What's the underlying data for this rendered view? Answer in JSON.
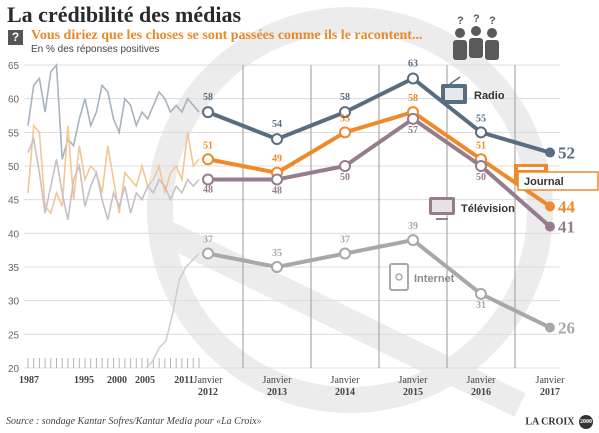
{
  "header": {
    "title": "La crédibilité des médias",
    "question_icon": "?",
    "subtitle": "Vous diriez que les choses se sont passées comme ils le racontent...",
    "unit_note": "En % des réponses positives"
  },
  "footer": {
    "source": "Source : sondage Kantar Sofres/Kantar Media pour «La Croix»",
    "logo": "LA CROIX",
    "logo_mark": "2000"
  },
  "colors": {
    "radio": "#5a6c80",
    "journal": "#ee8a2a",
    "television": "#967c8c",
    "internet": "#a8a8a8",
    "history_radio": "#a6b3c0",
    "history_journal": "#f3c793",
    "history_television": "#c9bfc6",
    "history_internet": "#cfcfcf",
    "grid": "#dcdcdc",
    "period_divider": "#9a9a9a",
    "watermark": "#ececec"
  },
  "chart_data": {
    "type": "line",
    "ylim": [
      20,
      65
    ],
    "y_ticks": [
      20,
      25,
      30,
      35,
      40,
      45,
      50,
      55,
      60,
      65
    ],
    "x_ticks_history": [
      "1987",
      "1995",
      "2000",
      "2005",
      "2011"
    ],
    "x_ticks_recent": [
      {
        "label": "Janvier",
        "year": "2012"
      },
      {
        "label": "Janvier",
        "year": "2013"
      },
      {
        "label": "Janvier",
        "year": "2014"
      },
      {
        "label": "Janvier",
        "year": "2015"
      },
      {
        "label": "Janvier",
        "year": "2016"
      },
      {
        "label": "Janvier",
        "year": "2017"
      }
    ],
    "series": [
      {
        "name": "Radio",
        "key": "radio",
        "icon": "radio-icon",
        "values": [
          58,
          54,
          58,
          63,
          55,
          52
        ],
        "final": "52",
        "history": [
          56,
          62,
          63,
          58,
          64,
          65,
          51,
          54,
          53,
          57,
          60,
          56,
          58,
          62,
          61,
          57,
          55,
          60,
          59,
          56,
          58,
          57,
          59,
          61,
          60,
          58,
          59,
          58,
          60,
          59,
          58
        ]
      },
      {
        "name": "Journal",
        "key": "journal",
        "icon": "newspaper-icon",
        "values": [
          51,
          49,
          55,
          58,
          51,
          44
        ],
        "final": "44",
        "history": [
          46,
          56,
          55,
          44,
          43,
          46,
          44,
          56,
          45,
          53,
          48,
          50,
          49,
          46,
          53,
          48,
          43,
          49,
          48,
          47,
          50,
          47,
          48,
          50,
          46,
          49,
          50,
          48,
          55,
          50,
          51
        ]
      },
      {
        "name": "Télévision",
        "key": "television",
        "icon": "tv-icon",
        "values": [
          48,
          48,
          50,
          57,
          50,
          41
        ],
        "final": "41",
        "history": [
          52,
          54,
          49,
          43,
          47,
          51,
          46,
          42,
          48,
          50,
          44,
          47,
          49,
          45,
          42,
          46,
          44,
          47,
          43,
          46,
          45,
          47,
          46,
          48,
          47,
          45,
          47,
          46,
          48,
          47,
          48
        ]
      },
      {
        "name": "Internet",
        "key": "internet",
        "icon": "mobile-icon",
        "values": [
          37,
          35,
          37,
          39,
          31,
          26
        ],
        "final": "26",
        "history": [
          20,
          21,
          23,
          24,
          28,
          33,
          35,
          36,
          37
        ]
      }
    ]
  }
}
